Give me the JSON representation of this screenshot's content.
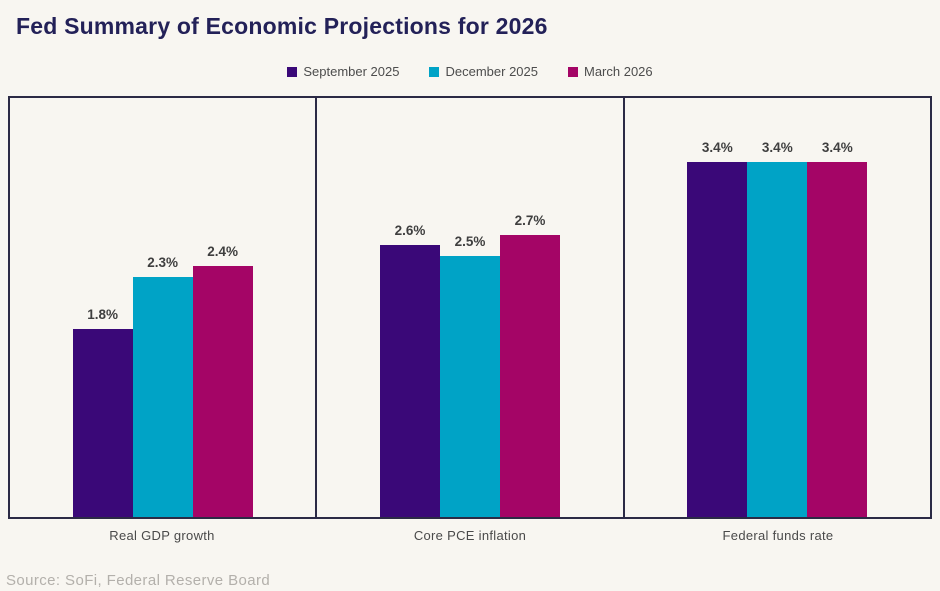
{
  "colors": {
    "background": "#f8f6f1",
    "chart_border": "#2b2a45",
    "title_text": "#232158",
    "value_label_text": "#3f3f3f",
    "category_label_text": "#4a4a4a",
    "legend_text": "#4d4d4d",
    "source_text": "#b3b0ab"
  },
  "source": {
    "text": "Source: SoFi, Federal Reserve Board"
  },
  "chart_data": {
    "type": "bar",
    "title": "Fed Summary of Economic Projections for 2026",
    "categories": [
      "Real GDP growth",
      "Core PCE inflation",
      "Federal funds rate"
    ],
    "series": [
      {
        "name": "September 2025",
        "color": "#3a0878",
        "values": [
          1.8,
          2.6,
          3.4
        ]
      },
      {
        "name": "December 2025",
        "color": "#00a3c6",
        "values": [
          2.3,
          2.5,
          3.4
        ]
      },
      {
        "name": "March 2026",
        "color": "#a40566",
        "values": [
          2.4,
          2.7,
          3.4
        ]
      }
    ],
    "value_suffix": "%",
    "data_labels": true,
    "ylim": [
      0,
      4
    ],
    "grid": false,
    "axes_visible": false,
    "legend_position": "top-center",
    "panel_layout": "three bordered panels, one category per panel, bars flush to bottom border"
  }
}
